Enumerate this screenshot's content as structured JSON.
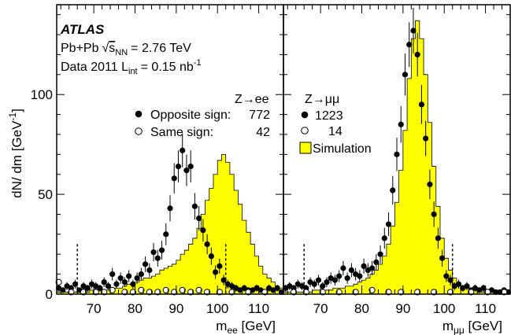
{
  "shared": {
    "ylabel_main": "dN/ dm [GeV",
    "ylabel_sup": "-1",
    "ylabel_end": "]",
    "y_ticks": [
      0,
      50,
      100
    ],
    "ylim": [
      0,
      145
    ],
    "x_ticks": [
      70,
      80,
      90,
      100,
      110
    ],
    "xlim": [
      61,
      116
    ],
    "atlas": "ATLAS",
    "collision_pre": "Pb+Pb",
    "collision_s": "s",
    "collision_nn": "NN",
    "collision_post": "= 2.76 TeV",
    "lumi_pre": "Data 2011 L",
    "lumi_sub": "int",
    "lumi_post": "= 0.15 nb",
    "lumi_sup": "-1"
  },
  "chart_data": [
    {
      "type": "bar",
      "panel": "left",
      "channel": "Z→ee",
      "xlabel_main": "m",
      "xlabel_sub": "ee",
      "xlabel_post": " [GeV]",
      "legend": [
        {
          "marker": "filled",
          "label": "Opposite sign:",
          "count": "772"
        },
        {
          "marker": "open",
          "label": "Same sign:",
          "count": "42"
        }
      ],
      "cut_lines": [
        66,
        102
      ],
      "simulation": {
        "bin_width": 1,
        "x_start": 61,
        "values": [
          1,
          1,
          1,
          1,
          1,
          1,
          1,
          1,
          2,
          2,
          2,
          2,
          2,
          3,
          3,
          3,
          4,
          5,
          5,
          6,
          7,
          8,
          8,
          9,
          10,
          12,
          13,
          14,
          15,
          17,
          20,
          22,
          25,
          28,
          33,
          40,
          47,
          53,
          60,
          67,
          70,
          66,
          60,
          52,
          45,
          37,
          31,
          25,
          19,
          14,
          10,
          8,
          6,
          4,
          3
        ]
      },
      "os_points": [
        {
          "x": 61.5,
          "y": 3
        },
        {
          "x": 62.5,
          "y": 2
        },
        {
          "x": 63.5,
          "y": 4
        },
        {
          "x": 64.5,
          "y": 3
        },
        {
          "x": 65.5,
          "y": 5
        },
        {
          "x": 66.5,
          "y": 2
        },
        {
          "x": 67.5,
          "y": 4
        },
        {
          "x": 68.5,
          "y": 3
        },
        {
          "x": 69.5,
          "y": 5
        },
        {
          "x": 70.5,
          "y": 4
        },
        {
          "x": 71.5,
          "y": 3
        },
        {
          "x": 72.5,
          "y": 6
        },
        {
          "x": 73.5,
          "y": 4
        },
        {
          "x": 74.5,
          "y": 10
        },
        {
          "x": 75.5,
          "y": 5
        },
        {
          "x": 76.5,
          "y": 8
        },
        {
          "x": 77.5,
          "y": 6
        },
        {
          "x": 78.5,
          "y": 9
        },
        {
          "x": 79.5,
          "y": 5
        },
        {
          "x": 80.5,
          "y": 8
        },
        {
          "x": 81.5,
          "y": 10
        },
        {
          "x": 82.5,
          "y": 15
        },
        {
          "x": 83.5,
          "y": 12
        },
        {
          "x": 84.5,
          "y": 21
        },
        {
          "x": 85.5,
          "y": 18
        },
        {
          "x": 86.5,
          "y": 22
        },
        {
          "x": 87.5,
          "y": 30
        },
        {
          "x": 88.5,
          "y": 43
        },
        {
          "x": 89.5,
          "y": 58
        },
        {
          "x": 90.5,
          "y": 64
        },
        {
          "x": 91.5,
          "y": 72
        },
        {
          "x": 92.5,
          "y": 62
        },
        {
          "x": 93.5,
          "y": 64
        },
        {
          "x": 94.5,
          "y": 44
        },
        {
          "x": 95.5,
          "y": 38
        },
        {
          "x": 96.5,
          "y": 32
        },
        {
          "x": 97.5,
          "y": 25
        },
        {
          "x": 98.5,
          "y": 19
        },
        {
          "x": 99.5,
          "y": 11
        },
        {
          "x": 100.5,
          "y": 14
        },
        {
          "x": 101.5,
          "y": 7
        },
        {
          "x": 102.5,
          "y": 5
        },
        {
          "x": 103.5,
          "y": 4
        },
        {
          "x": 104.5,
          "y": 3
        },
        {
          "x": 105.5,
          "y": 2
        },
        {
          "x": 106.5,
          "y": 3
        },
        {
          "x": 107.5,
          "y": 2
        },
        {
          "x": 108.5,
          "y": 2
        },
        {
          "x": 109.5,
          "y": 3
        },
        {
          "x": 110.5,
          "y": 2
        },
        {
          "x": 111.5,
          "y": 1
        },
        {
          "x": 112.5,
          "y": 3
        },
        {
          "x": 113.5,
          "y": 2
        },
        {
          "x": 114.5,
          "y": 3
        },
        {
          "x": 115.5,
          "y": 1
        }
      ],
      "ss_points": [
        {
          "x": 61.5,
          "y": 6
        },
        {
          "x": 64.5,
          "y": 1
        },
        {
          "x": 67.5,
          "y": 1
        },
        {
          "x": 70.5,
          "y": 1
        },
        {
          "x": 72.5,
          "y": 1
        },
        {
          "x": 74.5,
          "y": 2
        },
        {
          "x": 77.5,
          "y": 1
        },
        {
          "x": 79.5,
          "y": 1
        },
        {
          "x": 81.5,
          "y": 2
        },
        {
          "x": 83.5,
          "y": 1
        },
        {
          "x": 85.5,
          "y": 1
        },
        {
          "x": 87.5,
          "y": 2
        },
        {
          "x": 89.5,
          "y": 1
        },
        {
          "x": 91.5,
          "y": 2
        },
        {
          "x": 93.5,
          "y": 1
        },
        {
          "x": 95.5,
          "y": 2
        },
        {
          "x": 97.5,
          "y": 1
        },
        {
          "x": 100.5,
          "y": 1
        },
        {
          "x": 103.5,
          "y": 1
        },
        {
          "x": 107.5,
          "y": 1
        },
        {
          "x": 111.5,
          "y": 1
        }
      ]
    },
    {
      "type": "bar",
      "panel": "right",
      "channel": "Z→μμ",
      "xlabel_main": "m",
      "xlabel_sub": "μμ",
      "xlabel_post": " [GeV]",
      "legend": [
        {
          "marker": "filled",
          "label": "",
          "count": "1223"
        },
        {
          "marker": "open",
          "label": "",
          "count": "14"
        },
        {
          "marker": "box",
          "label": "Simulation",
          "count": ""
        }
      ],
      "cut_lines": [
        66,
        102
      ],
      "simulation": {
        "bin_width": 1,
        "x_start": 61,
        "values": [
          1,
          1,
          1,
          1,
          1,
          1,
          1,
          2,
          2,
          2,
          2,
          2,
          3,
          3,
          3,
          4,
          4,
          5,
          6,
          7,
          8,
          10,
          12,
          15,
          19,
          25,
          34,
          46,
          62,
          82,
          108,
          128,
          137,
          128,
          110,
          86,
          64,
          44,
          28,
          18,
          12,
          8,
          5,
          4,
          3,
          2,
          2,
          2,
          1,
          1,
          1,
          1,
          1,
          1,
          1
        ]
      },
      "os_points": [
        {
          "x": 61.5,
          "y": 3
        },
        {
          "x": 62.5,
          "y": 4
        },
        {
          "x": 63.5,
          "y": 3
        },
        {
          "x": 64.5,
          "y": 5
        },
        {
          "x": 65.5,
          "y": 4
        },
        {
          "x": 66.5,
          "y": 3
        },
        {
          "x": 67.5,
          "y": 6
        },
        {
          "x": 68.5,
          "y": 5
        },
        {
          "x": 69.5,
          "y": 7
        },
        {
          "x": 70.5,
          "y": 4
        },
        {
          "x": 71.5,
          "y": 6
        },
        {
          "x": 72.5,
          "y": 8
        },
        {
          "x": 73.5,
          "y": 7
        },
        {
          "x": 74.5,
          "y": 9
        },
        {
          "x": 75.5,
          "y": 13
        },
        {
          "x": 76.5,
          "y": 8
        },
        {
          "x": 77.5,
          "y": 12
        },
        {
          "x": 78.5,
          "y": 10
        },
        {
          "x": 79.5,
          "y": 9
        },
        {
          "x": 80.5,
          "y": 14
        },
        {
          "x": 81.5,
          "y": 12
        },
        {
          "x": 82.5,
          "y": 13
        },
        {
          "x": 83.5,
          "y": 16
        },
        {
          "x": 84.5,
          "y": 20
        },
        {
          "x": 85.5,
          "y": 28
        },
        {
          "x": 86.5,
          "y": 35
        },
        {
          "x": 87.5,
          "y": 52
        },
        {
          "x": 88.5,
          "y": 70
        },
        {
          "x": 89.5,
          "y": 85
        },
        {
          "x": 90.5,
          "y": 110
        },
        {
          "x": 91.5,
          "y": 125
        },
        {
          "x": 92.5,
          "y": 132
        },
        {
          "x": 93.5,
          "y": 120
        },
        {
          "x": 94.5,
          "y": 95
        },
        {
          "x": 95.5,
          "y": 78
        },
        {
          "x": 96.5,
          "y": 55
        },
        {
          "x": 97.5,
          "y": 40
        },
        {
          "x": 98.5,
          "y": 28
        },
        {
          "x": 99.5,
          "y": 18
        },
        {
          "x": 100.5,
          "y": 9
        },
        {
          "x": 101.5,
          "y": 7
        },
        {
          "x": 102.5,
          "y": 4
        },
        {
          "x": 103.5,
          "y": 5
        },
        {
          "x": 104.5,
          "y": 3
        },
        {
          "x": 105.5,
          "y": 4
        },
        {
          "x": 106.5,
          "y": 2
        },
        {
          "x": 107.5,
          "y": 3
        },
        {
          "x": 108.5,
          "y": 2
        },
        {
          "x": 109.5,
          "y": 3
        },
        {
          "x": 110.5,
          "y": 1
        },
        {
          "x": 111.5,
          "y": 2
        },
        {
          "x": 112.5,
          "y": 1
        },
        {
          "x": 113.5,
          "y": 1
        },
        {
          "x": 114.5,
          "y": 2
        },
        {
          "x": 115.5,
          "y": 1
        }
      ],
      "ss_points": [
        {
          "x": 63.5,
          "y": 1
        },
        {
          "x": 66.5,
          "y": 1
        },
        {
          "x": 70.5,
          "y": 1
        },
        {
          "x": 74.5,
          "y": 1
        },
        {
          "x": 78.5,
          "y": 1
        },
        {
          "x": 82.5,
          "y": 2
        },
        {
          "x": 86.5,
          "y": 1
        },
        {
          "x": 89.5,
          "y": 1
        },
        {
          "x": 93.5,
          "y": 1
        },
        {
          "x": 97.5,
          "y": 1
        },
        {
          "x": 101.5,
          "y": 1
        },
        {
          "x": 106.5,
          "y": 1
        },
        {
          "x": 110.5,
          "y": 1
        },
        {
          "x": 114.5,
          "y": 1
        }
      ]
    }
  ],
  "colors": {
    "simulation_fill": "#ffff00",
    "ink": "#000000"
  }
}
